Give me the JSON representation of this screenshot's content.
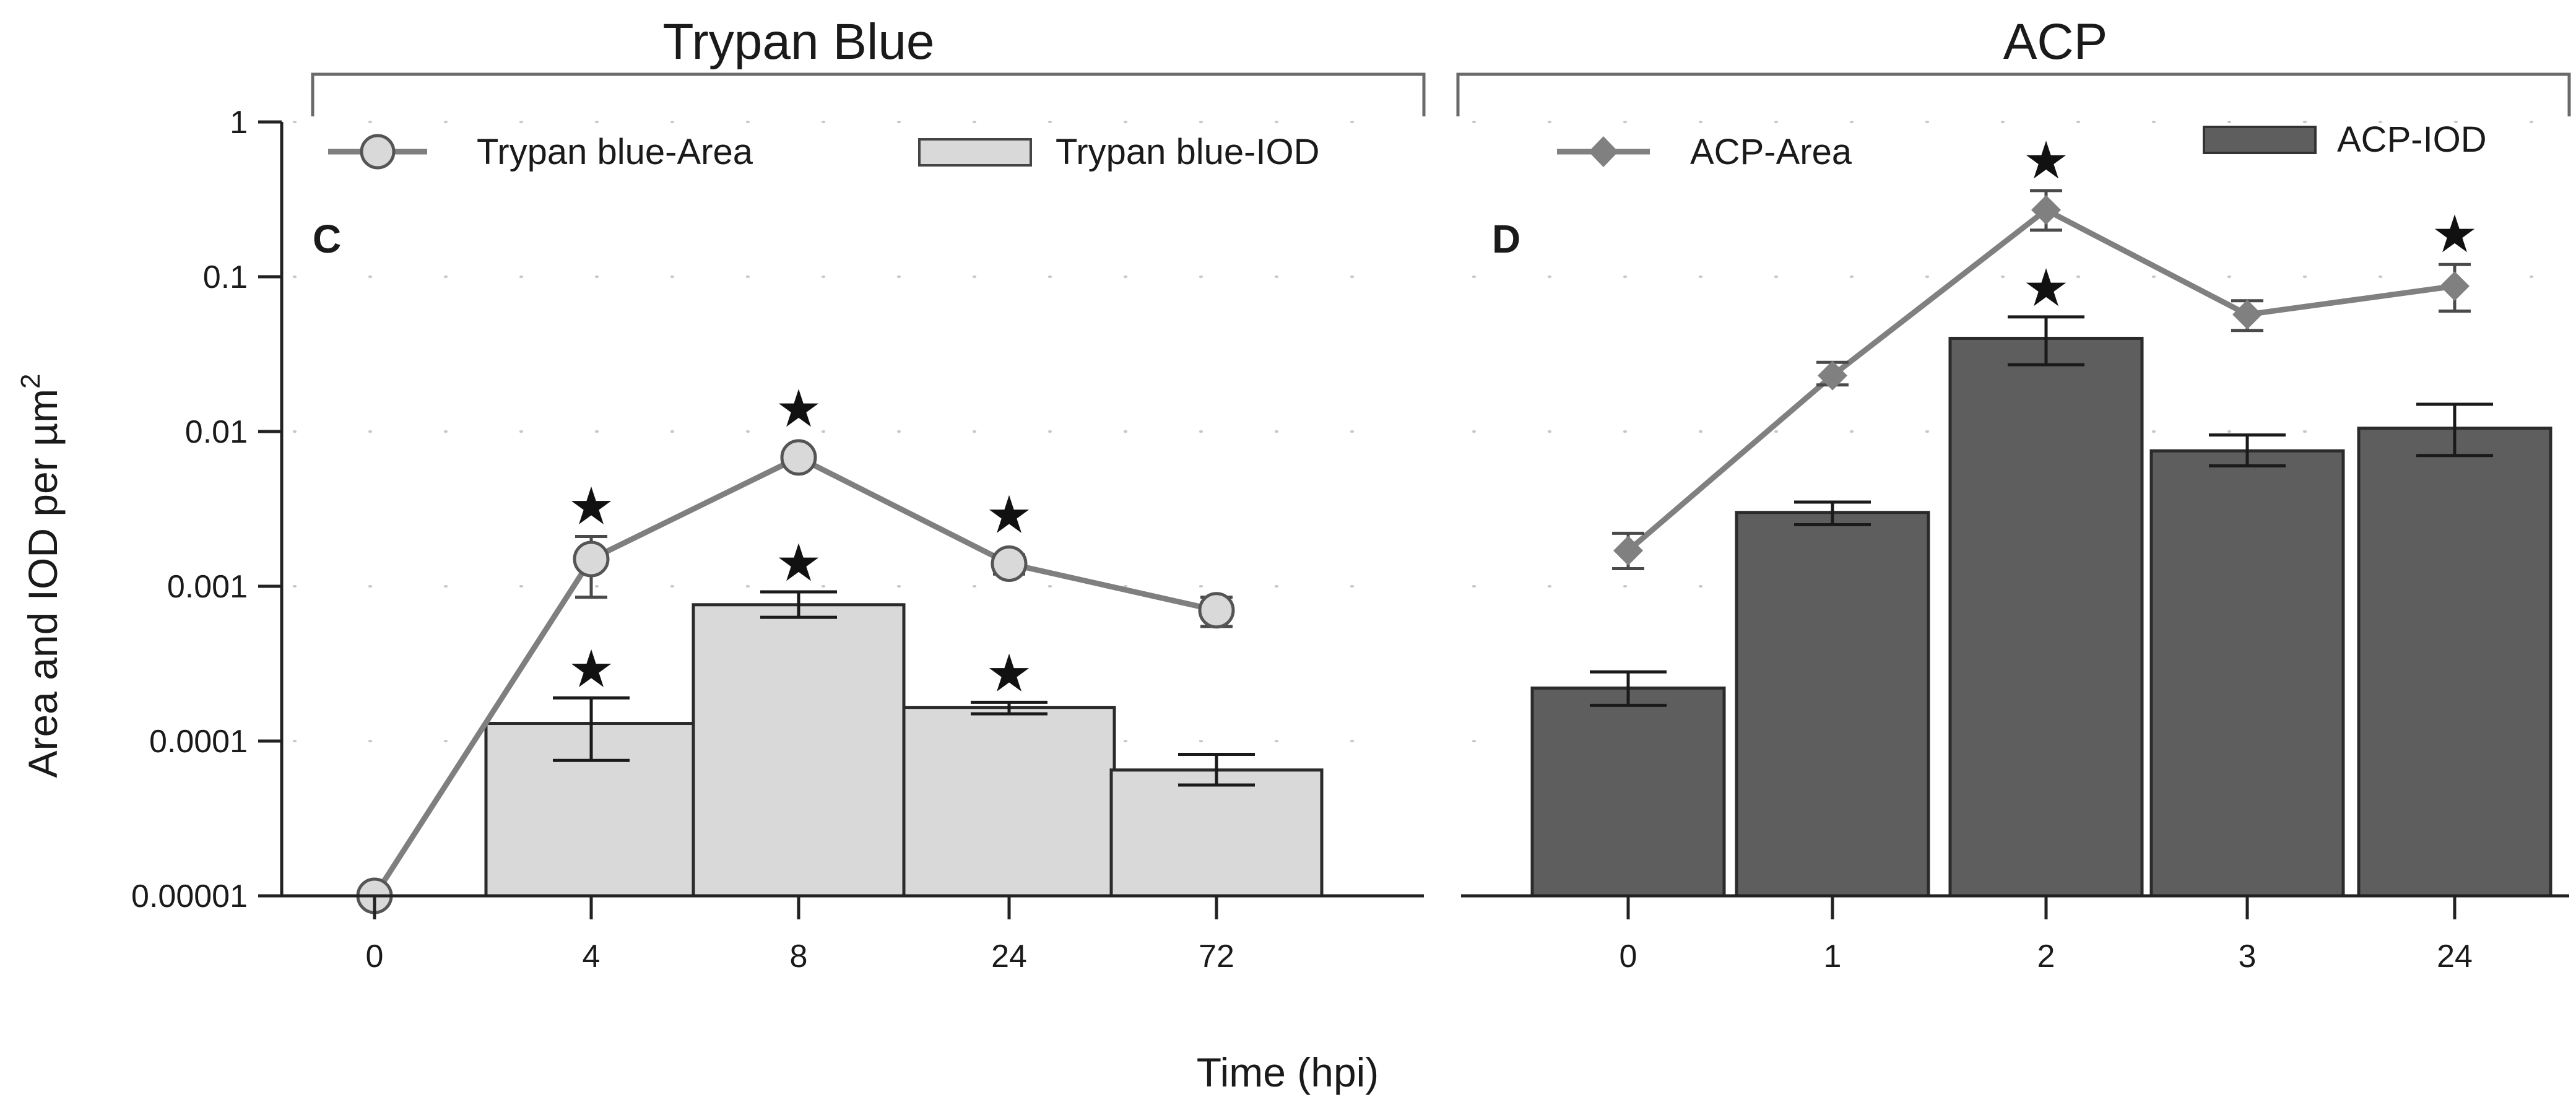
{
  "chart_data": [
    {
      "type": "bar",
      "panel": "C",
      "section_title": "Trypan Blue",
      "categories": [
        "0",
        "4",
        "8",
        "24",
        "72"
      ],
      "xlabel": "Time (hpi)",
      "ylabel": "Area and IOD per µm",
      "ylabel_superscript": "2",
      "yscale": "log",
      "ylim": [
        1e-05,
        1
      ],
      "yticks": [
        "0.00001",
        "0.0001",
        "0.001",
        "0.01",
        "0.1",
        "1"
      ],
      "grid": "dotted",
      "series": [
        {
          "name": "Trypan blue-IOD",
          "kind": "bar",
          "color": "#d9d9d9",
          "values": [
            null,
            0.00013,
            0.00076,
            0.000165,
            6.5e-05
          ],
          "err_low": [
            null,
            7.5e-05,
            0.00063,
            0.00015,
            5.2e-05
          ],
          "err_high": [
            null,
            0.00019,
            0.00092,
            0.000178,
            8.2e-05
          ],
          "significant": [
            false,
            true,
            true,
            true,
            false
          ]
        },
        {
          "name": "Trypan blue-Area",
          "kind": "line",
          "marker": "circle",
          "color": "#7f7f7f",
          "values": [
            1e-05,
            0.0015,
            0.0068,
            0.0014,
            0.0007
          ],
          "err_low": [
            null,
            0.00085,
            null,
            0.0012,
            0.00055
          ],
          "err_high": [
            null,
            0.0021,
            null,
            0.0016,
            0.00085
          ],
          "significant": [
            false,
            true,
            true,
            true,
            false
          ]
        }
      ]
    },
    {
      "type": "bar",
      "panel": "D",
      "section_title": "ACP",
      "categories": [
        "0",
        "1",
        "2",
        "3",
        "24"
      ],
      "xlabel": "Time (hpi)",
      "yscale": "log",
      "ylim": [
        1e-05,
        1
      ],
      "grid": "dotted",
      "series": [
        {
          "name": "ACP-IOD",
          "kind": "bar",
          "color": "#5e5e5e",
          "values": [
            0.00022,
            0.003,
            0.04,
            0.0075,
            0.0105
          ],
          "err_low": [
            0.00017,
            0.0025,
            0.027,
            0.006,
            0.007
          ],
          "err_high": [
            0.00028,
            0.0035,
            0.055,
            0.0095,
            0.015
          ],
          "significant": [
            false,
            false,
            true,
            false,
            false
          ]
        },
        {
          "name": "ACP-Area",
          "kind": "line",
          "marker": "diamond",
          "color": "#808080",
          "values": [
            0.0017,
            0.023,
            0.27,
            0.057,
            0.087
          ],
          "err_low": [
            0.0013,
            0.02,
            0.2,
            0.045,
            0.06
          ],
          "err_high": [
            0.0022,
            0.028,
            0.36,
            0.07,
            0.12
          ],
          "significant": [
            false,
            false,
            true,
            false,
            true
          ]
        }
      ]
    }
  ],
  "figure": {
    "xlabel": "Time (hpi)",
    "ylabel": "Area and IOD per µm",
    "ylabel_superscript": "2",
    "star_symbol": "★"
  }
}
